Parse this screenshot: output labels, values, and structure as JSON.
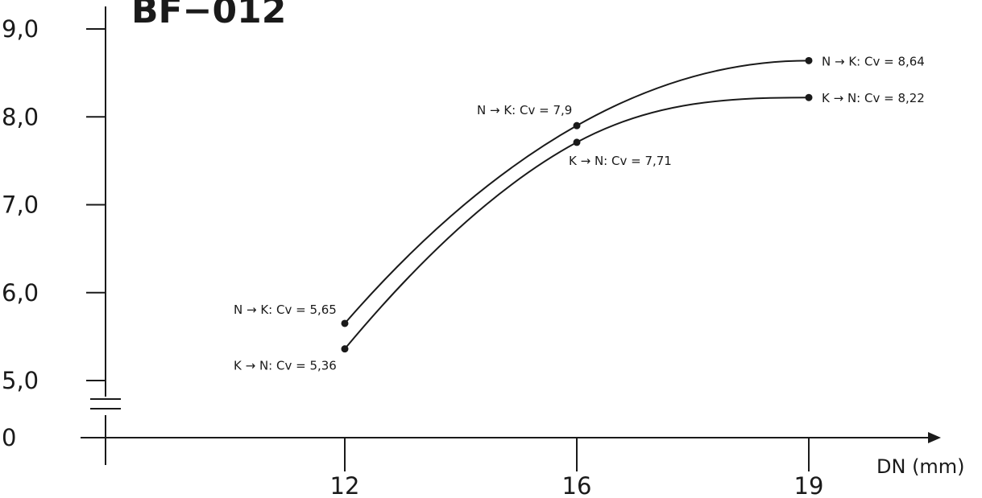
{
  "chart_data": {
    "type": "line",
    "title": "BF−012",
    "xlabel": "DN (mm)",
    "ylabel": "",
    "x": [
      12,
      16,
      19
    ],
    "x_tick_labels": [
      "12",
      "16",
      "19"
    ],
    "y_tick_values": [
      0,
      5.0,
      6.0,
      7.0,
      8.0,
      9.0
    ],
    "y_tick_labels": [
      "0",
      "5,0",
      "6,0",
      "7,0",
      "8,0",
      "9,0"
    ],
    "y_axis_break": true,
    "ylim": [
      5.0,
      9.0
    ],
    "series": [
      {
        "values": [
          5.65,
          7.9,
          8.64
        ],
        "labels": [
          "N → K: Cv = 5,65",
          "N → K: Cv = 7,9",
          "N → K: Cv = 8,64"
        ]
      },
      {
        "values": [
          5.36,
          7.71,
          8.22
        ],
        "labels": [
          "K → N: Cv = 5,36",
          "K → N: Cv = 7,71",
          "K → N: Cv = 8,22"
        ]
      }
    ],
    "grid": false,
    "colors": {
      "ink": "#1a1a1a",
      "background": "#ffffff"
    }
  }
}
